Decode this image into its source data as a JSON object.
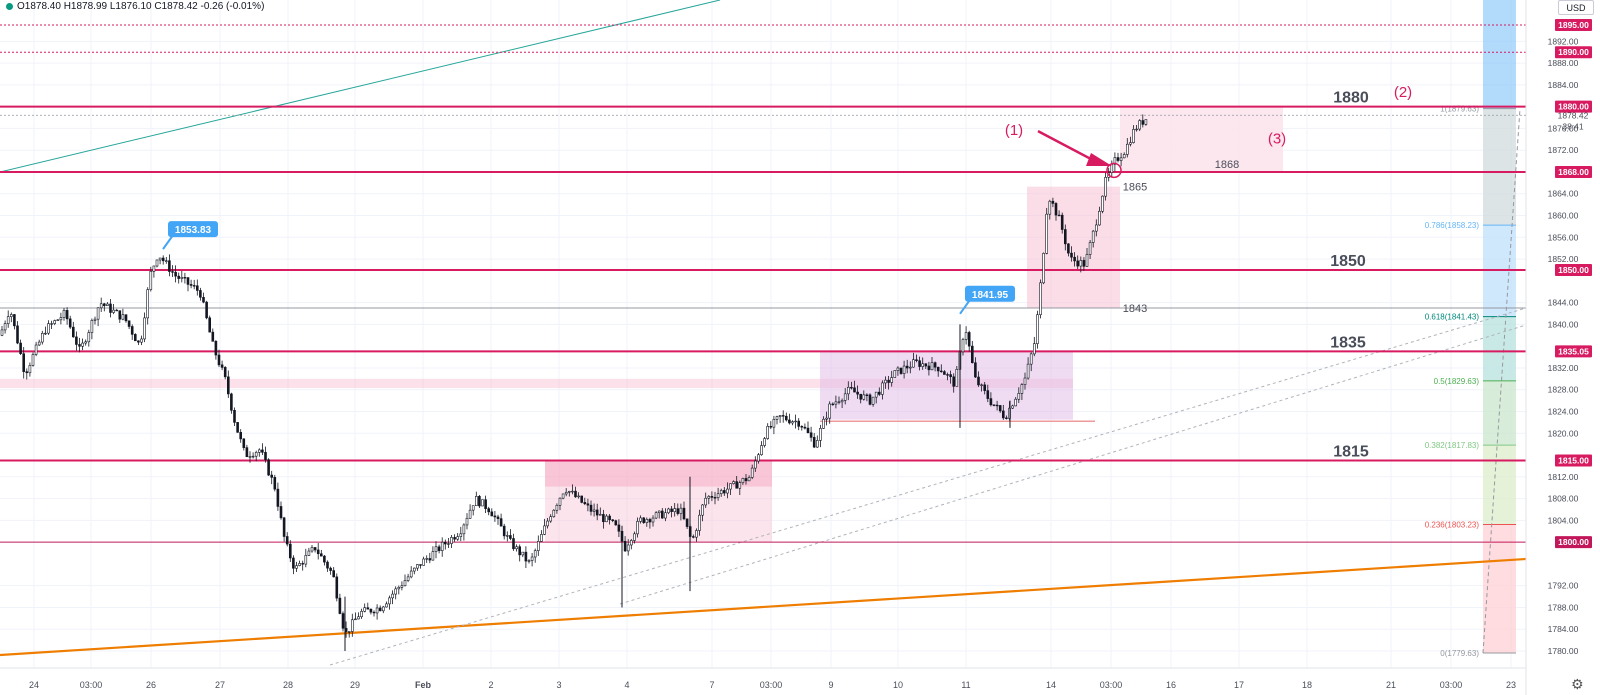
{
  "header": {
    "ohlc_text": "O1878.40  H1878.99  L1876.10  C1878.42  -0.26 (-0.01%)",
    "currency": "USD",
    "status_color": "#089981"
  },
  "chart_data": {
    "type": "candlestick",
    "title": "",
    "y_axis": {
      "ylim": [
        1778.5,
        1899
      ],
      "ticks": [
        "1892.00",
        "1888.00",
        "1884.00",
        "1876.00",
        "1872.00",
        "1864.00",
        "1860.00",
        "1856.00",
        "1852.00",
        "1844.00",
        "1840.00",
        "1832.00",
        "1828.00",
        "1824.00",
        "1820.00",
        "1812.00",
        "1808.00",
        "1804.00",
        "1792.00",
        "1788.00",
        "1784.00",
        "1780.00"
      ],
      "last_price": "1878.42",
      "countdown": "38:41"
    },
    "x_axis": {
      "ticks": [
        {
          "label": "24",
          "x": 34
        },
        {
          "label": "03:00",
          "x": 91
        },
        {
          "label": "26",
          "x": 151
        },
        {
          "label": "27",
          "x": 220
        },
        {
          "label": "28",
          "x": 288
        },
        {
          "label": "29",
          "x": 355
        },
        {
          "label": "Feb",
          "x": 423
        },
        {
          "label": "2",
          "x": 491
        },
        {
          "label": "3",
          "x": 559
        },
        {
          "label": "4",
          "x": 627
        },
        {
          "label": "7",
          "x": 712
        },
        {
          "label": "03:00",
          "x": 771
        },
        {
          "label": "9",
          "x": 831
        },
        {
          "label": "10",
          "x": 898
        },
        {
          "label": "11",
          "x": 966
        },
        {
          "label": "14",
          "x": 1051
        },
        {
          "label": "03:00",
          "x": 1111
        },
        {
          "label": "16",
          "x": 1171
        },
        {
          "label": "17",
          "x": 1239
        },
        {
          "label": "18",
          "x": 1307
        },
        {
          "label": "21",
          "x": 1391
        },
        {
          "label": "03:00",
          "x": 1451
        },
        {
          "label": "23",
          "x": 1511
        }
      ]
    },
    "price_path": [
      {
        "x": 0,
        "p": 1838
      },
      {
        "x": 10,
        "p": 1843
      },
      {
        "x": 25,
        "p": 1831
      },
      {
        "x": 45,
        "p": 1839
      },
      {
        "x": 65,
        "p": 1842
      },
      {
        "x": 80,
        "p": 1835
      },
      {
        "x": 100,
        "p": 1844
      },
      {
        "x": 125,
        "p": 1841
      },
      {
        "x": 140,
        "p": 1836
      },
      {
        "x": 150,
        "p": 1849
      },
      {
        "x": 158,
        "p": 1853
      },
      {
        "x": 175,
        "p": 1849
      },
      {
        "x": 200,
        "p": 1846
      },
      {
        "x": 213,
        "p": 1836
      },
      {
        "x": 225,
        "p": 1830
      },
      {
        "x": 235,
        "p": 1822
      },
      {
        "x": 245,
        "p": 1816
      },
      {
        "x": 260,
        "p": 1817
      },
      {
        "x": 275,
        "p": 1810
      },
      {
        "x": 285,
        "p": 1800
      },
      {
        "x": 295,
        "p": 1795
      },
      {
        "x": 315,
        "p": 1799
      },
      {
        "x": 333,
        "p": 1794
      },
      {
        "x": 345,
        "p": 1783
      },
      {
        "x": 360,
        "p": 1787
      },
      {
        "x": 380,
        "p": 1788
      },
      {
        "x": 400,
        "p": 1792
      },
      {
        "x": 420,
        "p": 1796
      },
      {
        "x": 440,
        "p": 1799
      },
      {
        "x": 460,
        "p": 1802
      },
      {
        "x": 475,
        "p": 1808
      },
      {
        "x": 490,
        "p": 1806
      },
      {
        "x": 510,
        "p": 1800
      },
      {
        "x": 530,
        "p": 1796
      },
      {
        "x": 550,
        "p": 1805
      },
      {
        "x": 565,
        "p": 1810
      },
      {
        "x": 590,
        "p": 1806
      },
      {
        "x": 615,
        "p": 1803
      },
      {
        "x": 625,
        "p": 1799
      },
      {
        "x": 640,
        "p": 1804
      },
      {
        "x": 660,
        "p": 1805
      },
      {
        "x": 680,
        "p": 1806
      },
      {
        "x": 692,
        "p": 1800
      },
      {
        "x": 705,
        "p": 1808
      },
      {
        "x": 730,
        "p": 1810
      },
      {
        "x": 750,
        "p": 1812
      },
      {
        "x": 765,
        "p": 1820
      },
      {
        "x": 780,
        "p": 1823
      },
      {
        "x": 800,
        "p": 1822
      },
      {
        "x": 815,
        "p": 1818
      },
      {
        "x": 830,
        "p": 1825
      },
      {
        "x": 850,
        "p": 1828
      },
      {
        "x": 870,
        "p": 1826
      },
      {
        "x": 895,
        "p": 1831
      },
      {
        "x": 915,
        "p": 1833
      },
      {
        "x": 940,
        "p": 1832
      },
      {
        "x": 955,
        "p": 1829
      },
      {
        "x": 965,
        "p": 1840
      },
      {
        "x": 975,
        "p": 1830
      },
      {
        "x": 990,
        "p": 1826
      },
      {
        "x": 1005,
        "p": 1823
      },
      {
        "x": 1025,
        "p": 1830
      },
      {
        "x": 1035,
        "p": 1837
      },
      {
        "x": 1042,
        "p": 1850
      },
      {
        "x": 1048,
        "p": 1864
      },
      {
        "x": 1060,
        "p": 1859
      },
      {
        "x": 1070,
        "p": 1852
      },
      {
        "x": 1085,
        "p": 1851
      },
      {
        "x": 1095,
        "p": 1858
      },
      {
        "x": 1105,
        "p": 1866
      },
      {
        "x": 1115,
        "p": 1870
      },
      {
        "x": 1125,
        "p": 1872
      },
      {
        "x": 1135,
        "p": 1876
      },
      {
        "x": 1147,
        "p": 1878
      }
    ],
    "horizontal_levels": [
      {
        "price": 1880.0,
        "label": "1880.00",
        "color": "#d81b60",
        "width": 2
      },
      {
        "price": 1868.0,
        "label": "1868.00",
        "color": "#d81b60",
        "width": 2
      },
      {
        "price": 1850.0,
        "label": "1850.00",
        "color": "#d81b60",
        "width": 2
      },
      {
        "price": 1835.05,
        "label": "1835.05",
        "color": "#d81b60",
        "width": 2
      },
      {
        "price": 1815.0,
        "label": "1815.00",
        "color": "#d81b60",
        "width": 2
      },
      {
        "price": 1800.0,
        "label": "1800.00",
        "color": "#c2185b",
        "width": 1
      },
      {
        "price": 1895.0,
        "label": "1895.00",
        "color": "#d81b60",
        "width": 1,
        "dotted": true
      },
      {
        "price": 1890.0,
        "label": "1890.00",
        "color": "#d81b60",
        "width": 1,
        "dotted": true
      },
      {
        "price": 1843.0,
        "label": "",
        "color": "#9598a1",
        "width": 1
      }
    ],
    "level_labels": [
      {
        "text": "1880",
        "x": 1351,
        "price": 1880.0
      },
      {
        "text": "1850",
        "x": 1348,
        "price": 1850.0
      },
      {
        "text": "1835",
        "x": 1348,
        "price": 1835.05
      },
      {
        "text": "1815",
        "x": 1351,
        "price": 1815.0
      }
    ],
    "callouts": [
      {
        "text": "1853.83",
        "x": 193,
        "price": 1853.83
      },
      {
        "text": "1841.95",
        "x": 990,
        "price": 1841.95
      }
    ],
    "annotations": [
      {
        "text": "(1)",
        "x": 1014,
        "price": 1875.5
      },
      {
        "text": "(2)",
        "x": 1403,
        "price": 1882.5
      },
      {
        "text": "(3)",
        "x": 1277,
        "price": 1874.0
      },
      {
        "text": "1868",
        "x": 1227,
        "price": 1869.5
      },
      {
        "text": "1865",
        "x": 1135,
        "price": 1865.3
      },
      {
        "text": "1843",
        "x": 1135,
        "price": 1843.0
      }
    ],
    "fibonacci": [
      {
        "label": "1(1879.63)",
        "price": 1879.63,
        "color": "#9598a1"
      },
      {
        "label": "0.786(1858.23)",
        "price": 1858.23,
        "color": "#64b5f6"
      },
      {
        "label": "0.618(1841.43)",
        "price": 1841.43,
        "color": "#00897b"
      },
      {
        "label": "0.5(1829.63)",
        "price": 1829.63,
        "color": "#4caf50"
      },
      {
        "label": "0.382(1817.83)",
        "price": 1817.83,
        "color": "#81c784"
      },
      {
        "label": "0.236(1803.23)",
        "price": 1803.23,
        "color": "#ef5350"
      },
      {
        "label": "0(1779.63)",
        "price": 1779.63,
        "color": "#9598a1"
      }
    ],
    "colors": {
      "candle": "#131722",
      "level": "#d81b60",
      "trend_orange": "#ef7d00",
      "trend_teal": "#26a69a",
      "callout": "#42a5f5"
    },
    "grid": true
  }
}
